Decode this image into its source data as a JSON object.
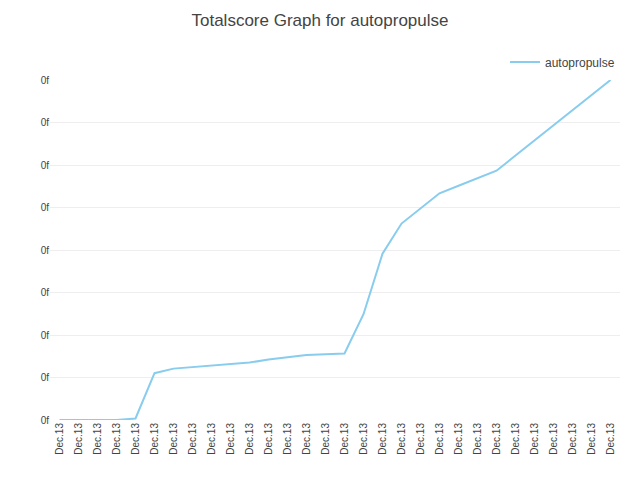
{
  "chart_data": {
    "type": "line",
    "title": "Totalscore Graph for autopropulse",
    "categories": [
      "Dec.13",
      "Dec.13",
      "Dec.13",
      "Dec.13",
      "Dec.13",
      "Dec.13",
      "Dec.13",
      "Dec.13",
      "Dec.13",
      "Dec.13",
      "Dec.13",
      "Dec.13",
      "Dec.13",
      "Dec.13",
      "Dec.13",
      "Dec.13",
      "Dec.13",
      "Dec.13",
      "Dec.13",
      "Dec.13",
      "Dec.13",
      "Dec.13",
      "Dec.13",
      "Dec.13",
      "Dec.13",
      "Dec.13",
      "Dec.13",
      "Dec.13",
      "Dec.13",
      "Dec.13"
    ],
    "series": [
      {
        "name": "autopropulse",
        "color": "#88ccee",
        "values": [
          0,
          0,
          0,
          0,
          0.02,
          0.62,
          0.68,
          0.7,
          0.72,
          0.74,
          0.76,
          0.8,
          0.83,
          0.86,
          0.87,
          0.88,
          1.4,
          2.2,
          2.6,
          2.8,
          3.0,
          3.1,
          3.2,
          3.3,
          3.5,
          3.7,
          3.9,
          4.1,
          4.3,
          4.5
        ]
      }
    ],
    "ylim": [
      0,
      4.5
    ],
    "yticks": [
      {
        "value": 0,
        "label": "0f"
      },
      {
        "value": 0.5625,
        "label": "0f"
      },
      {
        "value": 1.125,
        "label": "0f"
      },
      {
        "value": 1.6875,
        "label": "0f"
      },
      {
        "value": 2.25,
        "label": "0f"
      },
      {
        "value": 2.8125,
        "label": "0f"
      },
      {
        "value": 3.375,
        "label": "0f"
      },
      {
        "value": 3.9375,
        "label": "0f"
      },
      {
        "value": 4.5,
        "label": "0f"
      }
    ],
    "grid": true,
    "legend": "upper right"
  }
}
